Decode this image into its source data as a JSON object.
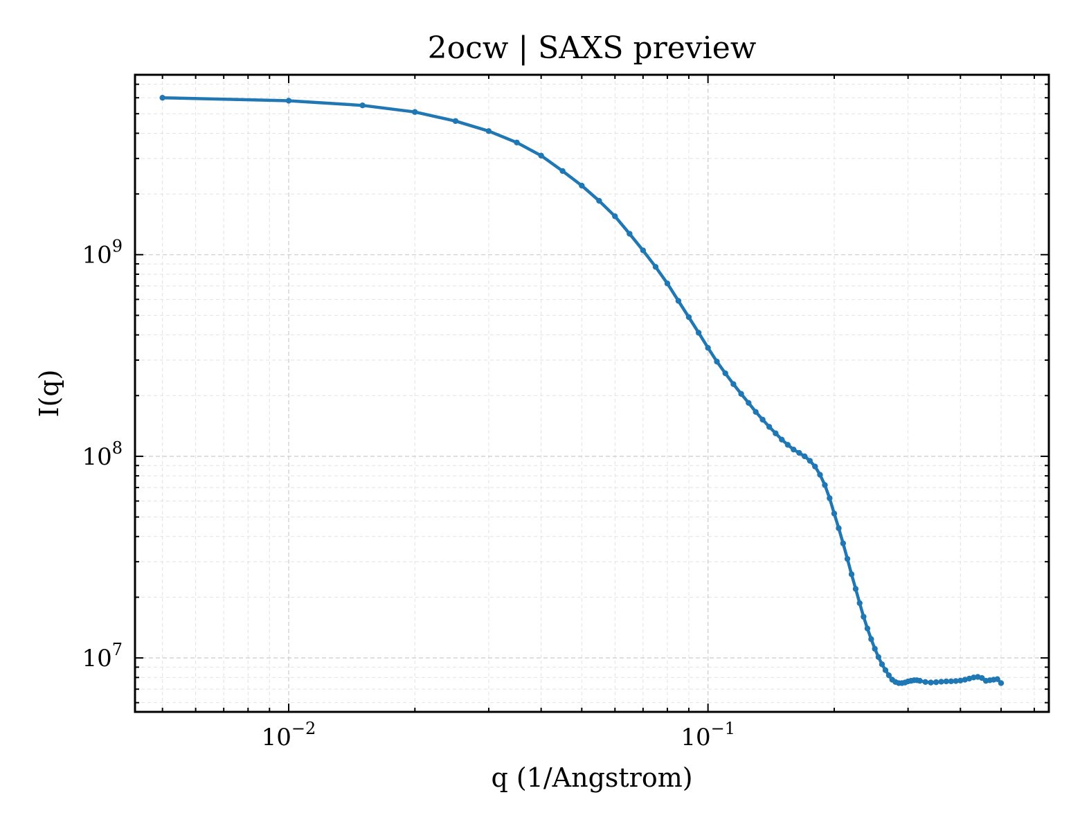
{
  "chart_data": {
    "type": "line",
    "title": "2ocw | SAXS preview",
    "xlabel": "q (1/Angstrom)",
    "ylabel": "I(q)",
    "xscale": "log",
    "yscale": "log",
    "xlim": [
      0.0043,
      0.65
    ],
    "ylim": [
      5400000,
      7800000000
    ],
    "xticks": [
      {
        "value": 0.01,
        "base": "10",
        "exp": "−2"
      },
      {
        "value": 0.1,
        "base": "10",
        "exp": "−1"
      }
    ],
    "yticks": [
      {
        "value": 10000000,
        "base": "10",
        "exp": "7"
      },
      {
        "value": 100000000,
        "base": "10",
        "exp": "8"
      },
      {
        "value": 1000000000,
        "base": "10",
        "exp": "9"
      }
    ],
    "grid": true,
    "color": "#1f77b4",
    "series": [
      {
        "x": [
          0.005,
          0.01,
          0.015,
          0.02,
          0.025,
          0.03,
          0.035,
          0.04,
          0.045,
          0.05,
          0.055,
          0.06,
          0.065,
          0.07,
          0.075,
          0.08,
          0.085,
          0.09,
          0.095,
          0.1,
          0.105,
          0.11,
          0.115,
          0.12,
          0.125,
          0.13,
          0.135,
          0.14,
          0.145,
          0.15,
          0.155,
          0.16,
          0.165,
          0.17,
          0.175,
          0.18,
          0.185,
          0.19,
          0.195,
          0.2,
          0.205,
          0.21,
          0.215,
          0.22,
          0.225,
          0.23,
          0.235,
          0.24,
          0.245,
          0.25,
          0.255,
          0.26,
          0.265,
          0.27,
          0.275,
          0.28,
          0.285,
          0.29,
          0.295,
          0.3,
          0.305,
          0.31,
          0.315,
          0.32,
          0.33,
          0.34,
          0.35,
          0.36,
          0.37,
          0.38,
          0.39,
          0.4,
          0.41,
          0.42,
          0.43,
          0.44,
          0.45,
          0.46,
          0.47,
          0.48,
          0.49,
          0.5
        ],
        "y": [
          6000000000,
          5800000000,
          5500000000,
          5100000000,
          4600000000,
          4100000000,
          3600000000,
          3100000000,
          2600000000,
          2200000000,
          1850000000,
          1550000000,
          1270000000,
          1050000000,
          870000000,
          720000000,
          590000000,
          490000000,
          410000000,
          345000000,
          295000000,
          258000000,
          228000000,
          204000000,
          184000000,
          166000000,
          152000000,
          140000000,
          130000000,
          121000000,
          114000000,
          108000000,
          104000000,
          100000000,
          95000000,
          89000000,
          81000000,
          72000000,
          62000000,
          52000000,
          44000000,
          37000000,
          31000000,
          26000000,
          22000000,
          18700000,
          16000000,
          14000000,
          12400000,
          11100000,
          10100000,
          9300000,
          8700000,
          8200000,
          7800000,
          7600000,
          7500000,
          7500000,
          7550000,
          7650000,
          7700000,
          7750000,
          7750000,
          7700000,
          7600000,
          7550000,
          7580000,
          7620000,
          7650000,
          7660000,
          7680000,
          7720000,
          7800000,
          7900000,
          8000000,
          8050000,
          7950000,
          7700000,
          7750000,
          7800000,
          7850000,
          7500000
        ]
      }
    ]
  }
}
